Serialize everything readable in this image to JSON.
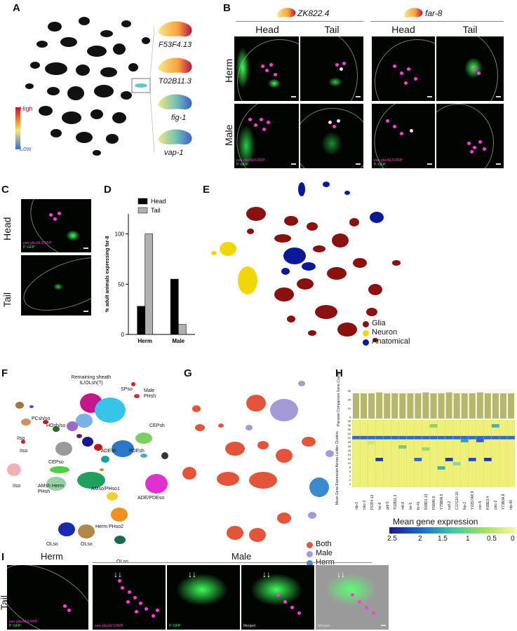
{
  "panels": {
    "A": {
      "label": "A",
      "genes": [
        "F53F4.13",
        "T02B11.3",
        "fig-1",
        "vap-1"
      ],
      "colorbar_high": "High",
      "colorbar_low": "Low"
    },
    "B": {
      "label": "B",
      "gene1": "ZK822.4",
      "gene2": "far-8",
      "col_head": "Head",
      "col_tail": "Tail",
      "col_head2": "Head",
      "col_tail2": "Tail",
      "row_herm": "Herm",
      "row_male": "Male",
      "marker_red": "pan-glia:NLS:RFP",
      "marker_green": "P::GFP"
    },
    "C": {
      "label": "C",
      "row_head": "Head",
      "row_tail": "Tail",
      "marker_red": "pan-glia:NLS:RFP",
      "marker_green": "P::GFP"
    },
    "D": {
      "label": "D"
    },
    "E": {
      "label": "E",
      "legend": [
        "Glia",
        "Neuron",
        "Anatomical"
      ]
    },
    "F": {
      "label": "F",
      "clusters": [
        "Remaining sheath IL/OLsh(?)",
        "SPso",
        "Male PHsh",
        "PCsh/so",
        "HOsh/so",
        "CEPsh",
        "ADEsh",
        "PDEsh",
        "IIso",
        "IIso",
        "IIso",
        "CEPso",
        "AMsh Herm PHsh",
        "AMso/PHso1",
        "ADE/PDEso",
        "Herm PHso2",
        "OLso",
        "OLso",
        "OLso"
      ]
    },
    "G": {
      "label": "G",
      "legend": [
        "Both",
        "Male",
        "Herm"
      ]
    },
    "H": {
      "label": "H",
      "side_top": "Pairwise Comparison Gene Counts",
      "side_bottom": "Mean Gene Expression Across Leiden Clusters",
      "colorbar_title": "Mean gene expression",
      "colorbar_ticks": [
        "2.5",
        "2",
        "1.5",
        "1",
        "0.5",
        "0"
      ],
      "y_ticks_top": [
        "30",
        "20",
        "10",
        "0"
      ],
      "y_ticks": [
        "30",
        "28",
        "26",
        "24",
        "22",
        "20",
        "18",
        "16",
        "14",
        "12",
        "10",
        "8",
        "6",
        "4",
        "2",
        "0"
      ],
      "genes": [
        "nlp-1",
        "clec-3",
        "F53F4.13",
        "far-8",
        "grd-5",
        "T02B11.3",
        "mlt-8",
        "far-5",
        "ttr-41",
        "R09D1.13",
        "F56H6.8",
        "Y75B8A.5",
        "cutl-2",
        "C17G10.10",
        "lbp-2",
        "Y22D7AR.9",
        "cnc-5",
        "K08E3.4",
        "clec-2",
        "Y73B3A.8",
        "nlp-40"
      ],
      "bars": [
        27,
        27,
        27,
        28,
        27,
        27,
        27,
        27,
        27,
        28,
        27,
        27,
        28,
        27,
        27,
        27,
        28,
        27,
        27,
        27,
        27
      ]
    },
    "I": {
      "label": "I",
      "herm": "Herm",
      "male": "Male",
      "tail": "Tail",
      "marker_red": "pan-glia:NLS:RFP",
      "marker_green": "P::GFP",
      "merged": "Merged",
      "merged2": "Merged"
    }
  },
  "chart_data": {
    "type": "bar",
    "categories": [
      "Herm",
      "Male"
    ],
    "series": [
      {
        "name": "Head",
        "values": [
          28,
          55
        ],
        "color": "#000000"
      },
      {
        "name": "Tail",
        "values": [
          100,
          10
        ],
        "color": "#b0b0b0"
      }
    ],
    "title": "",
    "xlabel": "",
    "ylabel": "% adult animals expressing far-8",
    "ylim": [
      0,
      120
    ],
    "yticks": [
      0,
      50,
      100
    ],
    "legend_position": "top"
  }
}
